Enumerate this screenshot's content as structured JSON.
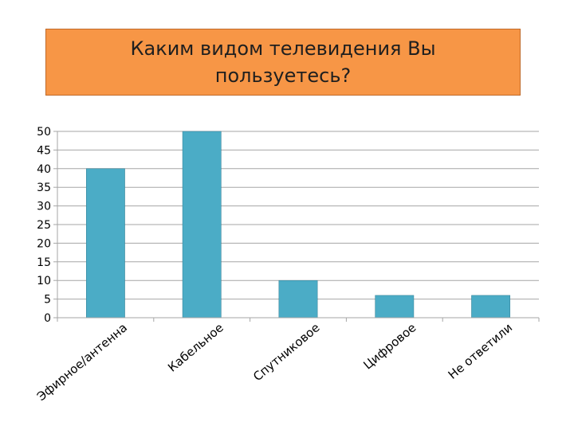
{
  "title": "Каким видом  телевидения Вы\nпользуетесь?",
  "colors": {
    "title_background": "#f79646",
    "bar": "#4bacc6",
    "grid": "#a6a6a6"
  },
  "chart_data": {
    "type": "bar",
    "title": "Каким видом  телевидения Вы\nпользуетесь?",
    "categories": [
      "Эфирное/антенна",
      "Кабельное",
      "Спутниковое",
      "Цифровое",
      "Не ответили"
    ],
    "values": [
      40,
      50,
      10,
      6,
      6
    ],
    "ylim": [
      0,
      50
    ],
    "yticks": [
      0,
      5,
      10,
      15,
      20,
      25,
      30,
      35,
      40,
      45,
      50
    ],
    "grid": true,
    "legend": "none"
  }
}
